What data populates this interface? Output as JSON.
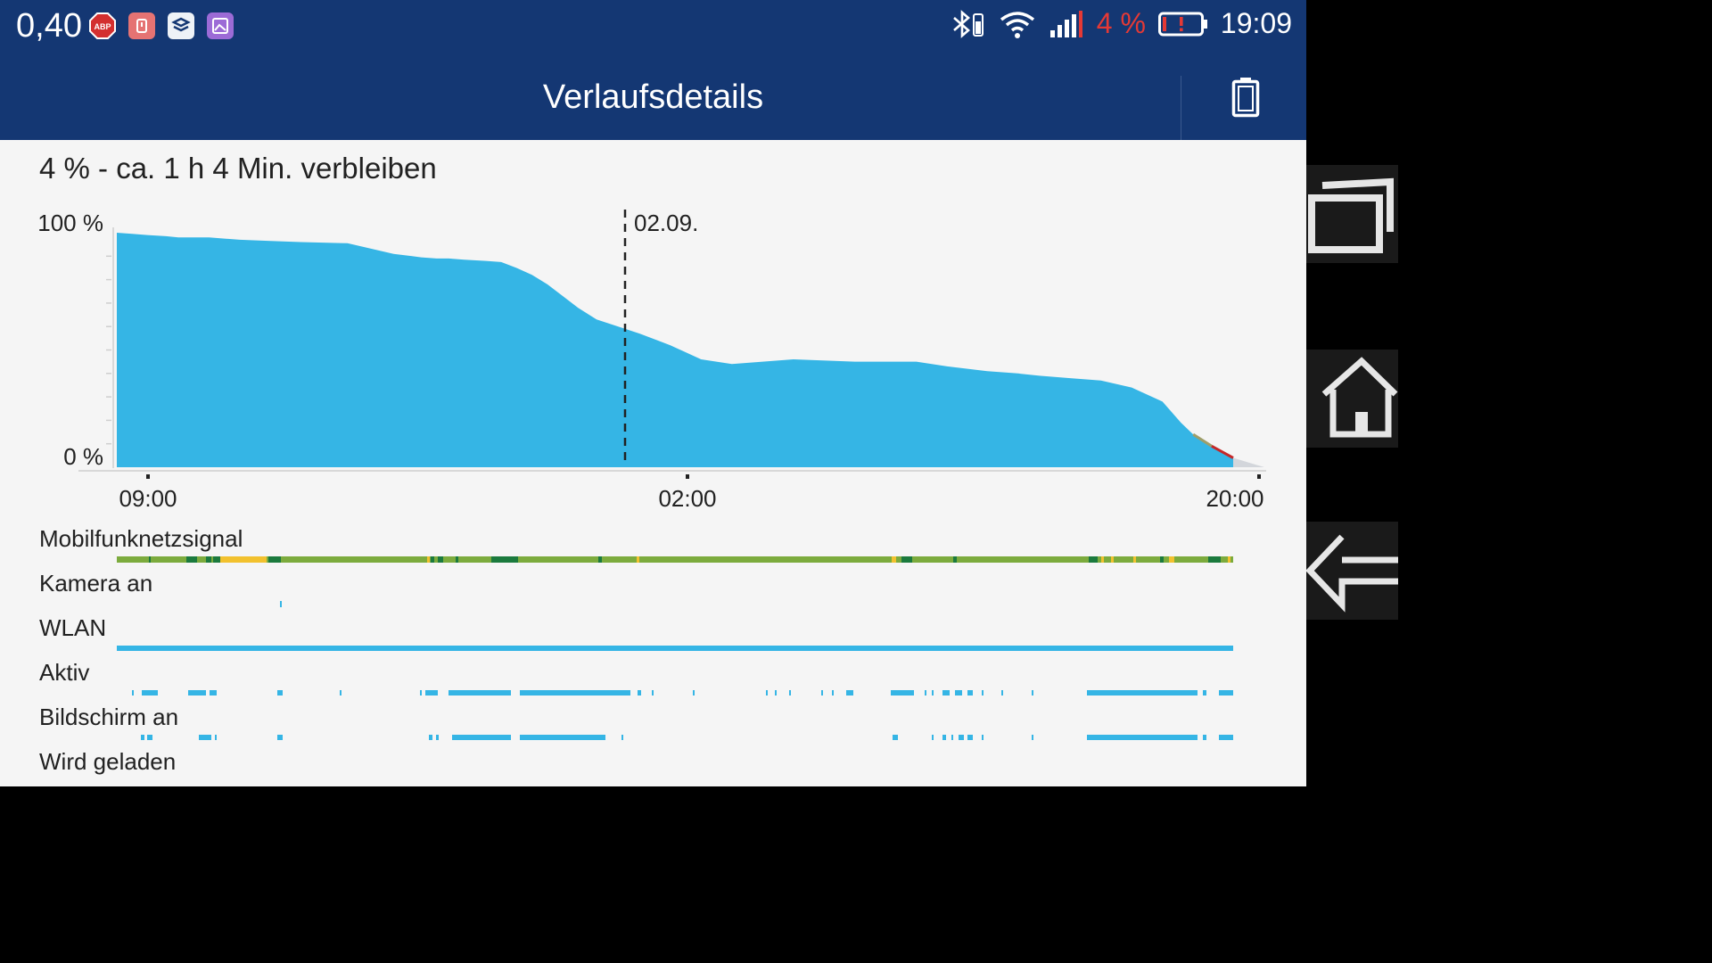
{
  "statusbar": {
    "left_text": "0,40",
    "battery_pct": "4 %",
    "time": "19:09",
    "left_icons": [
      "adblock-icon",
      "app-icon",
      "app-icon",
      "gallery-icon"
    ],
    "right_icons": [
      "bluetooth-icon",
      "wifi-icon",
      "signal-icon",
      "battery-low-icon"
    ]
  },
  "appbar": {
    "title": "Verlaufsdetails",
    "action_icon": "battery-icon"
  },
  "summary": "4 % - ca. 1 h 4 Min. verbleiben",
  "chart_data": {
    "type": "area",
    "ylabel_top": "100 %",
    "ylabel_bottom": "0 %",
    "x_ticks": [
      "09:00",
      "02:00",
      "20:00"
    ],
    "day_marker": "02.09.",
    "ylim": [
      0,
      100
    ],
    "x_hours": [
      0,
      0.5,
      1.0,
      1.6,
      2.0,
      3.0,
      4.0,
      5.0,
      6.0,
      7.5,
      9.0,
      9.6,
      9.9,
      10.4,
      10.8,
      11.3,
      12.0,
      12.5,
      13.0,
      13.5,
      14.0,
      14.5,
      15.0,
      15.6,
      17.0,
      18.0,
      19.0,
      20.0,
      22.0,
      24.0,
      25.5,
      26.0,
      26.5,
      27.0,
      28.3,
      29.3,
      30.0,
      31.0,
      32.0,
      33.0,
      34.0,
      34.6,
      35.0,
      35.6,
      36.3
    ],
    "values": [
      100,
      99.5,
      99,
      98.5,
      98,
      98,
      97,
      96.5,
      96,
      95.5,
      91,
      90,
      89.5,
      89,
      89,
      88.5,
      88,
      87.5,
      85,
      82,
      78,
      73,
      68,
      63,
      57,
      52,
      46,
      44,
      46,
      45,
      45,
      45,
      44,
      43,
      41,
      40,
      39,
      38,
      37,
      34,
      28,
      19,
      14,
      9,
      4
    ]
  },
  "rows": [
    {
      "label": "Mobilfunknetzsignal"
    },
    {
      "label": "Kamera an"
    },
    {
      "label": "WLAN"
    },
    {
      "label": "Aktiv"
    },
    {
      "label": "Bildschirm an"
    },
    {
      "label": "Wird geladen"
    }
  ],
  "colors": {
    "header": "#143773",
    "area": "#35b5e5",
    "signal_good": "#7cab3d",
    "signal_strong": "#1b7a3d",
    "signal_weak": "#f2c12e",
    "wlan": "#35b5e5"
  },
  "navbar": {
    "icons": [
      "recents-icon",
      "home-icon",
      "back-icon"
    ]
  }
}
